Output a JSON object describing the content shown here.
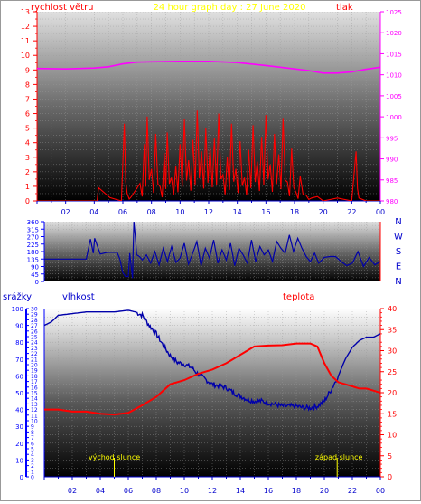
{
  "header": {
    "left": "rychlost větru",
    "center": "24 hour graph day : 27 June 2020",
    "right": "tlak"
  },
  "side_labels": {
    "left": "srážky",
    "hum": "vlhkost",
    "temp": "teplota"
  },
  "compass": [
    "N",
    "W",
    "S",
    "E",
    "N"
  ],
  "sun_labels": {
    "rise": "východ slunce",
    "set": "západ slunce"
  },
  "colors": {
    "wind": "#ff0000",
    "pressure": "#ff00ff",
    "direction": "#0000aa",
    "humidity": "#0000aa",
    "temperature": "#ff0000",
    "left_axis": "#ff0000",
    "pressure_axis": "#ff00ff",
    "blue_axis": "#0000ff",
    "title": "#ffff00",
    "sun": "#ffff00"
  },
  "chart_data": [
    {
      "type": "line",
      "panel": "wind_pressure",
      "title": "24 hour graph day : 27 June 2020",
      "x_ticks": [
        "02",
        "04",
        "06",
        "08",
        "10",
        "12",
        "14",
        "16",
        "18",
        "20",
        "22",
        "00"
      ],
      "y_left": {
        "label": "rychlost větru",
        "ticks": [
          0,
          1,
          2,
          3,
          4,
          5,
          6,
          7,
          8,
          9,
          10,
          11,
          12,
          13
        ],
        "ylim": [
          0,
          13
        ]
      },
      "y_right": {
        "label": "tlak",
        "ticks": [
          980,
          985,
          990,
          995,
          1000,
          1005,
          1010,
          1015,
          1020,
          1025
        ],
        "ylim": [
          980,
          1025
        ]
      },
      "series": [
        {
          "name": "rychlost větru",
          "axis": "left",
          "x": [
            0,
            4.2,
            4.3,
            5.9,
            6.1,
            6.3,
            6.6,
            7.2,
            7.5,
            7.7,
            8.0,
            8.3,
            8.6,
            8.9,
            9.1,
            9.4,
            9.7,
            10.0,
            10.3,
            10.6,
            10.9,
            11.2,
            11.5,
            11.8,
            12.1,
            12.4,
            12.7,
            13.0,
            13.3,
            13.6,
            13.9,
            14.2,
            14.5,
            14.8,
            15.1,
            15.4,
            15.7,
            16.0,
            16.3,
            16.6,
            16.9,
            17.2,
            17.5,
            17.8,
            18.1,
            18.4,
            18.8,
            19.2,
            19.6,
            20.0,
            21.0,
            22.0,
            22.3,
            22.5,
            23.0,
            24.0
          ],
          "y": [
            0,
            0,
            0.9,
            0,
            5.3,
            0.5,
            0.3,
            1.2,
            3.9,
            5.8,
            2.2,
            4.6,
            1.0,
            3.3,
            4.7,
            1.6,
            2.4,
            3.9,
            5.6,
            2.8,
            4.2,
            6.2,
            3.4,
            5.0,
            3.7,
            4.3,
            6.0,
            1.8,
            3.0,
            5.3,
            2.2,
            4.1,
            1.6,
            3.5,
            5.2,
            2.7,
            4.4,
            5.9,
            2.5,
            4.6,
            3.2,
            5.7,
            1.3,
            3.6,
            0.6,
            1.7,
            0.4,
            0.2,
            0.3,
            0,
            0.2,
            0,
            3.4,
            0.2,
            0,
            0
          ]
        },
        {
          "name": "tlak",
          "axis": "right",
          "x": [
            0,
            2,
            4,
            5,
            6,
            7,
            8,
            10,
            12,
            14,
            16,
            18,
            19,
            20,
            21,
            22,
            23,
            24
          ],
          "y": [
            1011.5,
            1011.4,
            1011.6,
            1011.9,
            1012.6,
            1013.0,
            1013.1,
            1013.2,
            1013.2,
            1012.9,
            1012.2,
            1011.4,
            1011.0,
            1010.4,
            1010.4,
            1010.7,
            1011.3,
            1011.8
          ]
        }
      ]
    },
    {
      "type": "line",
      "panel": "wind_direction",
      "y_ticks": [
        0,
        45,
        90,
        135,
        180,
        225,
        270,
        315,
        360
      ],
      "ylim": [
        0,
        360
      ],
      "series": [
        {
          "name": "wind direction",
          "x": [
            0,
            1.5,
            3,
            3.3,
            3.5,
            3.6,
            4,
            4.5,
            5.2,
            5.4,
            5.6,
            5.8,
            6.0,
            6.1,
            6.3,
            6.4,
            6.5,
            6.6,
            6.8,
            7.0,
            7.3,
            7.6,
            7.9,
            8.2,
            8.5,
            8.8,
            9.1,
            9.4,
            9.7,
            10.0,
            10.3,
            10.6,
            10.9,
            11.2,
            11.5,
            11.8,
            12.1,
            12.4,
            12.7,
            13.0,
            13.3,
            13.6,
            13.9,
            14.2,
            14.5,
            14.8,
            15.1,
            15.4,
            15.7,
            16.0,
            16.3,
            16.6,
            16.9,
            17.2,
            17.5,
            17.8,
            18.1,
            18.4,
            18.7,
            19.0,
            19.3,
            19.6,
            20.0,
            20.4,
            20.8,
            21.2,
            21.6,
            22.0,
            22.4,
            22.8,
            23.2,
            23.6,
            24.0
          ],
          "y": [
            135,
            135,
            135,
            255,
            170,
            260,
            165,
            175,
            175,
            135,
            55,
            30,
            30,
            170,
            20,
            360,
            270,
            160,
            150,
            130,
            160,
            110,
            180,
            100,
            200,
            120,
            210,
            115,
            140,
            230,
            105,
            170,
            240,
            95,
            200,
            140,
            250,
            110,
            190,
            130,
            230,
            95,
            200,
            160,
            110,
            250,
            120,
            210,
            160,
            190,
            120,
            240,
            200,
            170,
            280,
            180,
            260,
            200,
            150,
            120,
            170,
            110,
            145,
            150,
            150,
            120,
            95,
            110,
            180,
            90,
            145,
            100,
            120
          ]
        }
      ]
    },
    {
      "type": "line",
      "panel": "humidity_temperature",
      "x_ticks": [
        "02",
        "04",
        "06",
        "08",
        "10",
        "12",
        "14",
        "16",
        "18",
        "20",
        "22",
        "00"
      ],
      "y_precip": {
        "label": "srážky",
        "ticks": [
          0,
          1,
          2,
          3,
          4,
          5,
          6,
          7,
          8,
          9,
          10,
          11,
          12,
          13,
          14,
          15,
          16,
          17,
          18,
          19,
          20,
          21,
          22,
          23,
          24,
          25,
          26,
          27,
          28,
          29,
          30
        ],
        "ylim": [
          0,
          30
        ]
      },
      "y_humidity": {
        "label": "vlhkost",
        "ticks": [
          0,
          10,
          20,
          30,
          40,
          50,
          60,
          70,
          80,
          90,
          100
        ],
        "ylim": [
          0,
          100
        ]
      },
      "y_temperature": {
        "label": "teplota",
        "ticks": [
          0,
          5,
          10,
          15,
          20,
          25,
          30,
          35,
          40
        ],
        "ylim": [
          0,
          40
        ]
      },
      "sunrise": "05:00",
      "sunset": "20:55",
      "series": [
        {
          "name": "vlhkost",
          "axis": "humidity",
          "x": [
            0,
            0.5,
            1,
            2,
            3,
            4,
            5,
            6,
            6.5,
            7,
            7.5,
            8,
            8.5,
            9,
            9.5,
            10,
            10.5,
            11,
            11.5,
            12,
            12.5,
            13,
            13.5,
            14,
            14.5,
            15,
            15.5,
            16,
            16.5,
            17,
            17.5,
            18,
            18.5,
            19,
            19.5,
            20,
            20.5,
            21,
            21.5,
            22,
            22.5,
            23,
            23.5,
            24
          ],
          "y": [
            90,
            92,
            96,
            97,
            98,
            98,
            98,
            99,
            98,
            96,
            90,
            85,
            78,
            72,
            68,
            67,
            65,
            61,
            58,
            55,
            54,
            53,
            50,
            48,
            46,
            45,
            45,
            44,
            43,
            42,
            42,
            42,
            41,
            41,
            42,
            45,
            52,
            60,
            70,
            77,
            81,
            83,
            83,
            85
          ]
        },
        {
          "name": "teplota",
          "axis": "temperature",
          "x": [
            0,
            1,
            2,
            3,
            4,
            5,
            6,
            7,
            8,
            9,
            10,
            11,
            12,
            13,
            14,
            15,
            16,
            17,
            18,
            19,
            19.5,
            20,
            20.5,
            21,
            21.5,
            22,
            22.5,
            23,
            23.5,
            24
          ],
          "y": [
            16,
            16,
            15.5,
            15.5,
            15,
            14.8,
            15.2,
            17,
            19,
            22,
            23,
            24.5,
            25.5,
            27,
            29,
            31,
            31.2,
            31.3,
            31.7,
            31.7,
            31,
            27,
            24,
            22.5,
            22,
            21.5,
            21,
            21,
            20.5,
            20
          ]
        }
      ]
    }
  ]
}
